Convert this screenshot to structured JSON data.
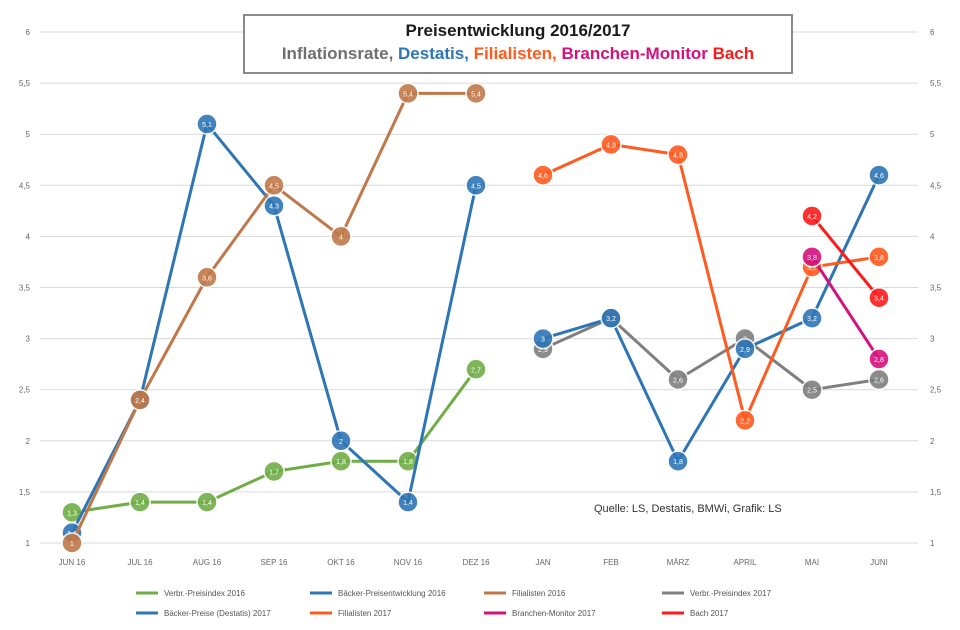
{
  "title": "Preisentwicklung 2016/2017",
  "subtitle_parts": [
    {
      "text": "Inflationsrate, ",
      "color": "#6f6f6f"
    },
    {
      "text": "Destatis, ",
      "color": "#2e75b6"
    },
    {
      "text": "Filialisten, ",
      "color": "#ff5a1f"
    },
    {
      "text": "Branchen-Monitor ",
      "color": "#d4127e"
    },
    {
      "text": "Bach",
      "color": "#ff1a1a"
    }
  ],
  "source": "Quelle: LS, Destatis, BMWi, Grafik: LS",
  "chart_data": {
    "type": "line",
    "categories": [
      "JUN 16",
      "JUL 16",
      "AUG 16",
      "SEP 16",
      "OKT 16",
      "NOV 16",
      "DEZ 16",
      "JAN",
      "FEB",
      "MÄRZ",
      "APRIL",
      "MAI",
      "JUNI"
    ],
    "y_ticks": [
      "1",
      "1,5",
      "2",
      "2,5",
      "3",
      "3,5",
      "4",
      "4,5",
      "5",
      "5,5",
      "6"
    ],
    "ylim": [
      1,
      6
    ],
    "grid": true,
    "legend_position": "bottom",
    "series": [
      {
        "name": "Verbr.-Preisindex 2016",
        "color": "#70ad47",
        "marker_labels": true,
        "values": [
          1.3,
          1.4,
          1.4,
          1.7,
          1.8,
          1.8,
          2.7,
          null,
          null,
          null,
          null,
          null,
          null
        ]
      },
      {
        "name": "Bäcker-Preisentwicklung 2016",
        "color": "#2e75b6",
        "marker_labels": true,
        "values": [
          1.1,
          2.4,
          5.1,
          4.3,
          2.0,
          1.4,
          4.5,
          null,
          null,
          null,
          null,
          null,
          null
        ]
      },
      {
        "name": "Filialisten 2016",
        "color": "#c0784a",
        "marker_labels": true,
        "values": [
          1.0,
          2.4,
          3.6,
          4.5,
          4.0,
          5.4,
          5.4,
          null,
          null,
          null,
          null,
          null,
          null
        ]
      },
      {
        "name": "Verbr.-Preisindex 2017",
        "color": "#7f7f7f",
        "marker_labels": true,
        "values": [
          null,
          null,
          null,
          null,
          null,
          null,
          null,
          2.9,
          3.2,
          2.6,
          3.0,
          2.5,
          2.6
        ]
      },
      {
        "name": "Bäcker-Preise (Destatis) 2017",
        "color": "#2e75b6",
        "marker_labels": true,
        "values": [
          null,
          null,
          null,
          null,
          null,
          null,
          null,
          3.0,
          3.2,
          1.8,
          2.9,
          3.2,
          4.6
        ]
      },
      {
        "name": "Filialisten 2017",
        "color": "#ff5a1f",
        "marker_labels": true,
        "values": [
          null,
          null,
          null,
          null,
          null,
          null,
          null,
          4.6,
          4.9,
          4.8,
          2.2,
          3.7,
          3.8
        ]
      },
      {
        "name": "Branchen-Monitor 2017",
        "color": "#d4127e",
        "marker_labels": true,
        "values": [
          null,
          null,
          null,
          null,
          null,
          null,
          null,
          null,
          null,
          null,
          null,
          3.8,
          2.8
        ]
      },
      {
        "name": "Bach 2017",
        "color": "#ff1a1a",
        "marker_labels": true,
        "values": [
          null,
          null,
          null,
          null,
          null,
          null,
          null,
          null,
          null,
          null,
          null,
          4.2,
          3.4
        ]
      }
    ]
  }
}
